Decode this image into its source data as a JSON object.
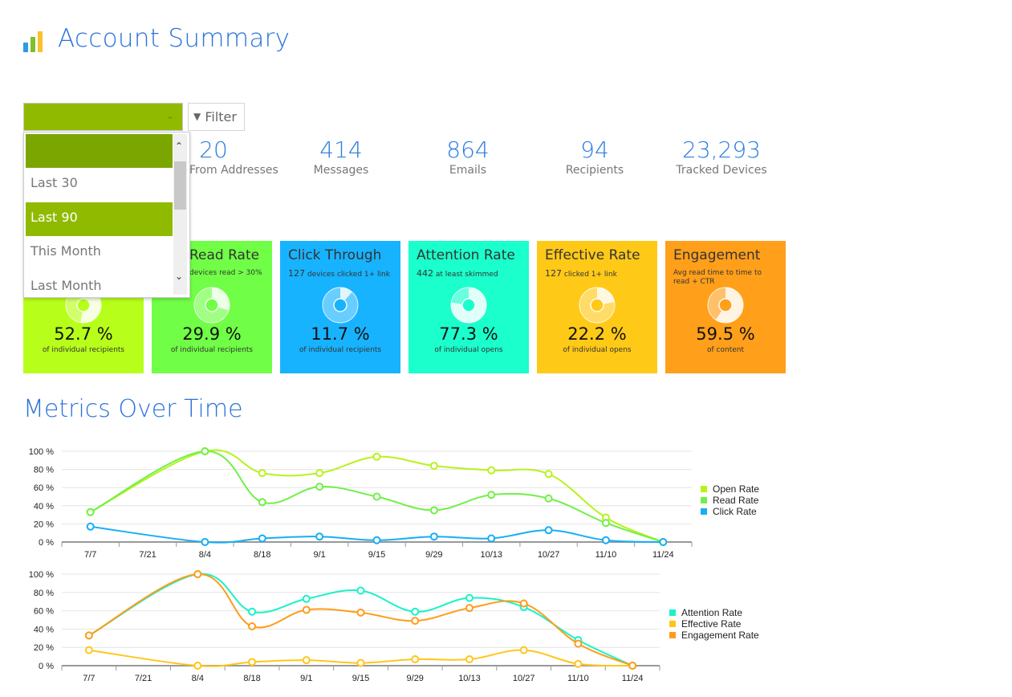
{
  "header": {
    "title": "Account Summary",
    "logo_colors": [
      "#2f9be0",
      "#7ec12a",
      "#fbc02d"
    ]
  },
  "controls": {
    "select_value": "",
    "filter_label": "Filter",
    "filter_icon": "funnel-icon",
    "dropdown_options": [
      "",
      "Last 30",
      "Last 90",
      "This Month",
      "Last Month"
    ],
    "dropdown_selected": "Last 90"
  },
  "stats": [
    {
      "value": "20",
      "label": "From Addresses"
    },
    {
      "value": "414",
      "label": "Messages"
    },
    {
      "value": "864",
      "label": "Emails"
    },
    {
      "value": "94",
      "label": "Recipients"
    },
    {
      "value": "23,293",
      "label": "Tracked Devices"
    }
  ],
  "cards": [
    {
      "title": "",
      "count": "",
      "subtitle": "",
      "value": "52.7 %",
      "percent": 52.7,
      "caption": "of individual recipients",
      "color": "#b7ff1a"
    },
    {
      "title": "Read Rate",
      "count": "",
      "subtitle": "devices read > 30%",
      "value": "29.9 %",
      "percent": 29.9,
      "caption": "of individual recipients",
      "color": "#70ff46"
    },
    {
      "title": "Click Through",
      "count": "127",
      "subtitle": "devices clicked 1+ link",
      "value": "11.7 %",
      "percent": 11.7,
      "caption": "of individual recipients",
      "color": "#17b3ff"
    },
    {
      "title": "Attention Rate",
      "count": "442",
      "subtitle": "at least skimmed",
      "value": "77.3 %",
      "percent": 77.3,
      "caption": "of individual opens",
      "color": "#1affcc"
    },
    {
      "title": "Effective Rate",
      "count": "127",
      "subtitle": "clicked 1+ link",
      "value": "22.2 %",
      "percent": 22.2,
      "caption": "of individual opens",
      "color": "#ffc918"
    },
    {
      "title": "Engagement",
      "count": "",
      "subtitle": "Avg read time to time to read + CTR",
      "value": "59.5 %",
      "percent": 59.5,
      "caption": "of content",
      "color": "#ff9f1a"
    }
  ],
  "section_title": "Metrics Over Time",
  "chart_data": [
    {
      "type": "line",
      "categories": [
        "7/7",
        "7/21",
        "8/4",
        "8/18",
        "9/1",
        "9/15",
        "9/29",
        "10/13",
        "10/27",
        "11/10",
        "11/24"
      ],
      "yticks": [
        "0 %",
        "20 %",
        "40 %",
        "60 %",
        "80 %",
        "100 %"
      ],
      "ylim": [
        0,
        100
      ],
      "grid": true,
      "legend": "right",
      "x": [
        "7/7",
        "8/4",
        "8/18",
        "9/1",
        "9/15",
        "9/29",
        "10/13",
        "10/27",
        "11/10",
        "11/24"
      ],
      "series": [
        {
          "name": "Open Rate",
          "color": "#b7f31a",
          "values": [
            33,
            100,
            76,
            76,
            94,
            84,
            79,
            75,
            27,
            0
          ]
        },
        {
          "name": "Read Rate",
          "color": "#70f046",
          "values": [
            33,
            100,
            44,
            61,
            50,
            35,
            52,
            48,
            21,
            0
          ]
        },
        {
          "name": "Click Rate",
          "color": "#17aef5",
          "values": [
            17,
            0,
            4,
            6,
            2,
            6,
            4,
            13,
            2,
            0
          ]
        }
      ]
    },
    {
      "type": "line",
      "categories": [
        "7/7",
        "7/21",
        "8/4",
        "8/18",
        "9/1",
        "9/15",
        "9/29",
        "10/13",
        "10/27",
        "11/10",
        "11/24"
      ],
      "yticks": [
        "0 %",
        "20 %",
        "40 %",
        "60 %",
        "80 %",
        "100 %"
      ],
      "ylim": [
        0,
        100
      ],
      "grid": true,
      "legend": "right",
      "x": [
        "7/7",
        "8/4",
        "8/18",
        "9/1",
        "9/15",
        "9/29",
        "10/13",
        "10/27",
        "11/10",
        "11/24"
      ],
      "series": [
        {
          "name": "Attention Rate",
          "color": "#1af2c8",
          "values": [
            33,
            100,
            59,
            73,
            82,
            59,
            74,
            64,
            28,
            0
          ]
        },
        {
          "name": "Effective Rate",
          "color": "#ffc61a",
          "values": [
            17,
            0,
            4,
            6,
            3,
            7,
            7,
            17,
            2,
            0
          ]
        },
        {
          "name": "Engagement Rate",
          "color": "#ff9c1a",
          "values": [
            33,
            100,
            43,
            61,
            58,
            49,
            63,
            68,
            24,
            0
          ]
        }
      ]
    }
  ]
}
